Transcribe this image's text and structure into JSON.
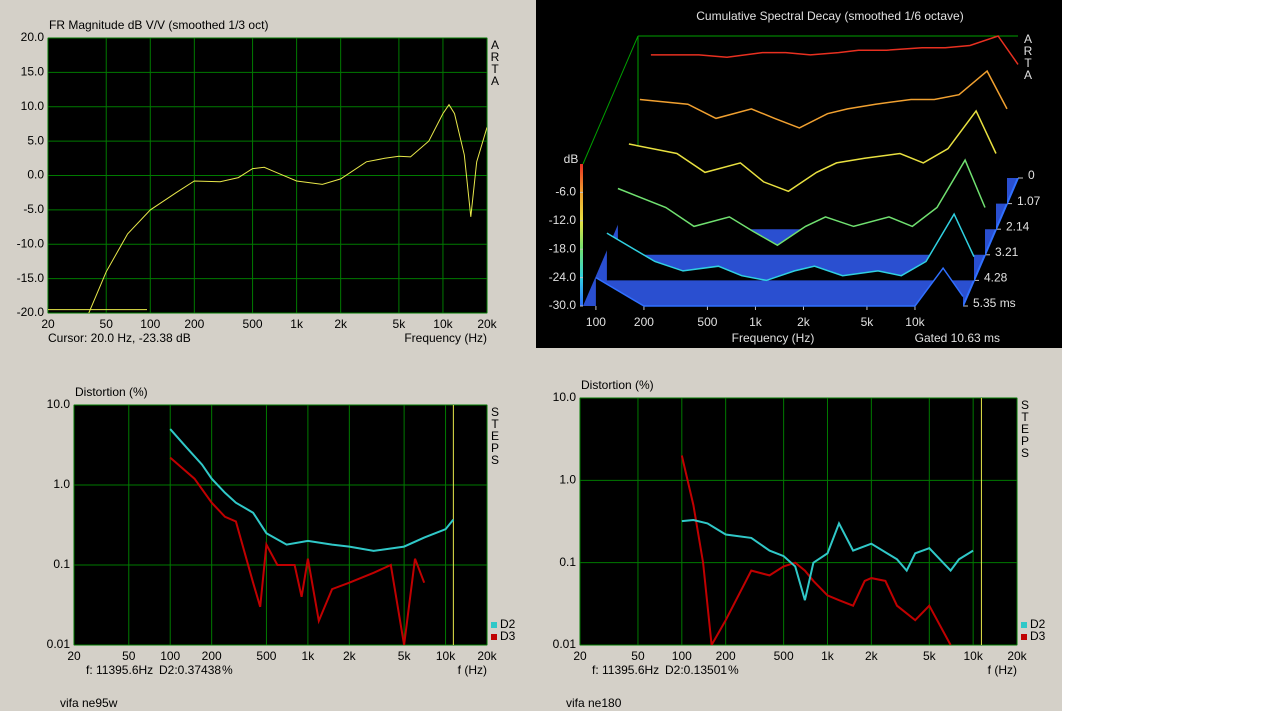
{
  "chart_data": [
    {
      "type": "line",
      "title": "FR Magnitude dB V/V (smoothed 1/3 oct)",
      "side_label": "ARTA",
      "x_label": "Frequency (Hz)",
      "cursor_text": "Cursor: 20.0 Hz, -23.38 dB",
      "xlog": true,
      "xlim": [
        20,
        20000
      ],
      "xticks": [
        20,
        50,
        100,
        200,
        500,
        {
          "value": 1000,
          "label": "1k"
        },
        {
          "value": 2000,
          "label": "2k"
        },
        {
          "value": 5000,
          "label": "5k"
        },
        {
          "value": 10000,
          "label": "10k"
        },
        {
          "value": 20000,
          "label": "20k"
        }
      ],
      "ylim": [
        -20,
        20
      ],
      "yticks": [
        {
          "value": 20,
          "label": "20.0"
        },
        {
          "value": 15,
          "label": "15.0"
        },
        {
          "value": 10,
          "label": "10.0"
        },
        {
          "value": 5,
          "label": "5.0"
        },
        {
          "value": 0,
          "label": "0.0"
        },
        {
          "value": -5,
          "label": "-5.0"
        },
        {
          "value": -10,
          "label": "-10.0"
        },
        {
          "value": -15,
          "label": "-15.0"
        },
        {
          "value": -20,
          "label": "-20.0"
        }
      ],
      "grid": true,
      "series": [
        {
          "color": "#e8e84a",
          "x": [
            38,
            50,
            70,
            100,
            150,
            200,
            300,
            400,
            500,
            600,
            700,
            1000,
            1500,
            2000,
            3000,
            4000,
            5000,
            6000,
            8000,
            10000,
            11000,
            12000,
            14000,
            15500,
            17000,
            20000
          ],
          "values": [
            -20,
            -14,
            -8.5,
            -5,
            -2.5,
            -0.8,
            -0.9,
            -0.3,
            1,
            1.2,
            0.6,
            -0.8,
            -1.3,
            -0.5,
            2,
            2.5,
            2.8,
            2.7,
            5,
            9,
            10.3,
            9,
            3,
            -6,
            2,
            7
          ]
        },
        {
          "color": "#e8e84a",
          "x": [
            20,
            95
          ],
          "values": [
            -19.5,
            -19.5
          ]
        }
      ]
    },
    {
      "type": "waterfall",
      "title": "Cumulative Spectral Decay (smoothed 1/6 octave)",
      "side_label": "ARTA",
      "x_label": "Frequency (Hz)",
      "gate_text": "Gated 10.63 ms",
      "y_label": "dB",
      "xlog": true,
      "xlim": [
        83,
        20000
      ],
      "xticks": [
        100,
        200,
        500,
        {
          "value": 1000,
          "label": "1k"
        },
        {
          "value": 2000,
          "label": "2k"
        },
        {
          "value": 5000,
          "label": "5k"
        },
        {
          "value": 10000,
          "label": "10k"
        }
      ],
      "ylim": [
        -30,
        0
      ],
      "yticks": [
        {
          "value": -6,
          "label": "-6.0"
        },
        {
          "value": -12,
          "label": "-12.0"
        },
        {
          "value": -18,
          "label": "-18.0"
        },
        {
          "value": -24,
          "label": "-24.0"
        },
        {
          "value": -30,
          "label": "-30.0"
        }
      ],
      "zlim": [
        0,
        5.35
      ],
      "zticks": [
        0,
        1.07,
        2.14,
        3.21,
        4.28,
        {
          "value": 5.35,
          "label": "5.35 ms"
        }
      ],
      "x": [
        100,
        200,
        300,
        500,
        700,
        1000,
        1500,
        2000,
        3000,
        5000,
        7000,
        10000,
        15000,
        20000
      ],
      "series": [
        {
          "time": 0,
          "color": "#e83020",
          "values": [
            -4,
            -4,
            -4.5,
            -3.5,
            -3.5,
            -4,
            -3.5,
            -3,
            -3,
            -2.5,
            -2.5,
            -2,
            0,
            -6
          ]
        },
        {
          "time": 1.07,
          "color": "#f0a030",
          "values": [
            -8,
            -9,
            -12,
            -10,
            -12,
            -14,
            -11,
            -10,
            -9,
            -8,
            -8,
            -7,
            -2,
            -10
          ]
        },
        {
          "time": 2.14,
          "color": "#e8e040",
          "values": [
            -12,
            -14,
            -18,
            -16,
            -20,
            -22,
            -18,
            -16,
            -15,
            -14,
            -16,
            -13,
            -5,
            -14
          ]
        },
        {
          "time": 3.21,
          "color": "#70e070",
          "values": [
            -16,
            -20,
            -24,
            -22,
            -25,
            -28,
            -24,
            -22,
            -24,
            -22,
            -24,
            -20,
            -10,
            -20
          ]
        },
        {
          "time": 4.28,
          "color": "#30d0e0",
          "values": [
            -20,
            -26,
            -28,
            -27,
            -29,
            -30,
            -28,
            -27,
            -29,
            -28,
            -29,
            -26,
            -16,
            -25
          ]
        },
        {
          "time": 5.35,
          "color": "#3070ff",
          "values": [
            -24,
            -30,
            -30,
            -30,
            -30,
            -30,
            -30,
            -30,
            -30,
            -30,
            -30,
            -30,
            -22,
            -28
          ]
        }
      ]
    },
    {
      "type": "line",
      "title": "Distortion (%)",
      "side_label": "STEPS",
      "x_label": "f (Hz)",
      "cursor": 11395.6,
      "cursor_text": "f: 11395.6Hz",
      "readout": "D2:0.37438",
      "unit": "%",
      "footer": "vifa ne95w",
      "xlog": true,
      "ylog": true,
      "xlim": [
        20,
        20000
      ],
      "xticks": [
        20,
        50,
        100,
        200,
        500,
        {
          "value": 1000,
          "label": "1k"
        },
        {
          "value": 2000,
          "label": "2k"
        },
        {
          "value": 5000,
          "label": "5k"
        },
        {
          "value": 10000,
          "label": "10k"
        },
        {
          "value": 20000,
          "label": "20k"
        }
      ],
      "ylim": [
        0.01,
        10
      ],
      "yticks": [
        {
          "value": 10,
          "label": "10.0"
        },
        {
          "value": 1,
          "label": "1.0"
        },
        0.1,
        0.01
      ],
      "grid": true,
      "series": [
        {
          "name": "D3",
          "color": "#c00000",
          "x": [
            100,
            150,
            200,
            250,
            300,
            400,
            450,
            500,
            600,
            800,
            900,
            1000,
            1200,
            1500,
            2000,
            3000,
            4000,
            5000,
            6000,
            7000
          ],
          "values": [
            2.2,
            1.2,
            0.6,
            0.4,
            0.35,
            0.06,
            0.03,
            0.18,
            0.1,
            0.1,
            0.04,
            0.12,
            0.02,
            0.05,
            0.06,
            0.08,
            0.1,
            0.01,
            0.12,
            0.06
          ]
        },
        {
          "name": "D2",
          "color": "#30c8c8",
          "x": [
            100,
            130,
            170,
            200,
            250,
            300,
            400,
            500,
            700,
            1000,
            1500,
            2000,
            3000,
            5000,
            7000,
            10000,
            11400
          ],
          "values": [
            5,
            3,
            1.8,
            1.2,
            0.8,
            0.6,
            0.45,
            0.25,
            0.18,
            0.2,
            0.18,
            0.17,
            0.15,
            0.17,
            0.22,
            0.28,
            0.37
          ]
        }
      ]
    },
    {
      "type": "line",
      "title": "Distortion (%)",
      "side_label": "STEPS",
      "x_label": "f (Hz)",
      "cursor": 11395.6,
      "cursor_text": "f: 11395.6Hz",
      "readout": "D2:0.13501",
      "unit": "%",
      "footer": "vifa ne180",
      "xlog": true,
      "ylog": true,
      "xlim": [
        20,
        20000
      ],
      "xticks": [
        20,
        50,
        100,
        200,
        500,
        {
          "value": 1000,
          "label": "1k"
        },
        {
          "value": 2000,
          "label": "2k"
        },
        {
          "value": 5000,
          "label": "5k"
        },
        {
          "value": 10000,
          "label": "10k"
        },
        {
          "value": 20000,
          "label": "20k"
        }
      ],
      "ylim": [
        0.01,
        10
      ],
      "yticks": [
        {
          "value": 10,
          "label": "10.0"
        },
        {
          "value": 1,
          "label": "1.0"
        },
        0.1,
        0.01
      ],
      "grid": true,
      "series": [
        {
          "name": "D3",
          "color": "#c00000",
          "x": [
            100,
            120,
            140,
            160,
            200,
            300,
            400,
            500,
            600,
            700,
            800,
            1000,
            1200,
            1500,
            1800,
            2000,
            2500,
            3000,
            4000,
            5000,
            7000
          ],
          "values": [
            2,
            0.5,
            0.1,
            0.01,
            0.02,
            0.08,
            0.07,
            0.09,
            0.1,
            0.08,
            0.06,
            0.04,
            0.035,
            0.03,
            0.06,
            0.065,
            0.06,
            0.03,
            0.02,
            0.03,
            0.01
          ]
        },
        {
          "name": "D2",
          "color": "#30c8c8",
          "x": [
            100,
            120,
            150,
            200,
            300,
            400,
            500,
            600,
            700,
            800,
            1000,
            1200,
            1500,
            2000,
            3000,
            3500,
            4000,
            5000,
            7000,
            8000,
            10000
          ],
          "values": [
            0.32,
            0.33,
            0.3,
            0.22,
            0.2,
            0.14,
            0.12,
            0.09,
            0.035,
            0.1,
            0.13,
            0.3,
            0.14,
            0.17,
            0.11,
            0.08,
            0.13,
            0.15,
            0.08,
            0.11,
            0.14
          ]
        }
      ]
    }
  ]
}
